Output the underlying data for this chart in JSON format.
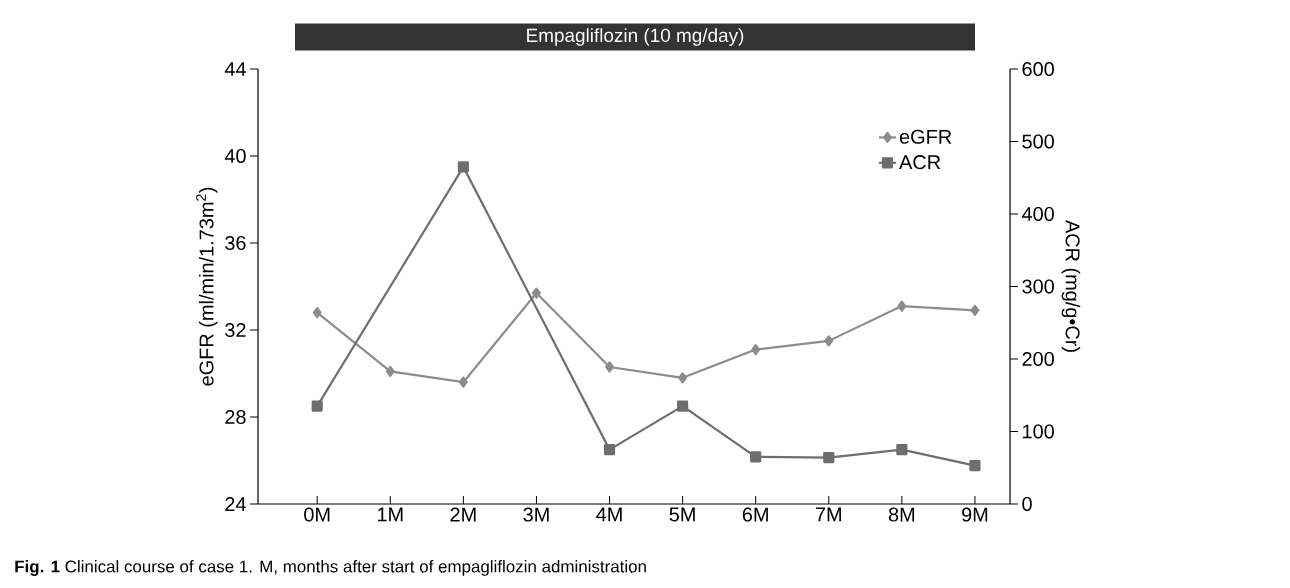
{
  "chart_data": {
    "type": "line",
    "title": "Empagliflozin (10 mg/day)",
    "categories": [
      "0M",
      "1M",
      "2M",
      "3M",
      "4M",
      "5M",
      "6M",
      "7M",
      "8M",
      "9M"
    ],
    "ylabel": "eGFR (ml/min/1.73m$^{2}$)",
    "y2label": "ACR (mg/g•Cr)",
    "ylim": [
      24,
      44
    ],
    "yticks": [
      24,
      28,
      32,
      36,
      40,
      44
    ],
    "y2lim": [
      0,
      600
    ],
    "y2ticks": [
      0,
      100,
      200,
      300,
      400,
      500,
      600
    ],
    "series": [
      {
        "name": "eGFR",
        "color": "#8c8c8c",
        "marker": "diamond",
        "values": [
          32.8,
          30.1,
          29.6,
          33.7,
          30.3,
          29.8,
          31.1,
          31.5,
          33.1,
          32.9
        ]
      },
      {
        "name": "ACR",
        "color": "#6e6e6e",
        "marker": "square",
        "axis": "y2",
        "values": [
          135,
          null,
          465,
          null,
          75,
          135,
          65,
          64,
          75,
          53
        ]
      }
    ],
    "legend": "top right",
    "annotations": [
      "**Fig. 1** Clinical course of case 1. M, months after start of empagliflozin administration"
    ]
  }
}
